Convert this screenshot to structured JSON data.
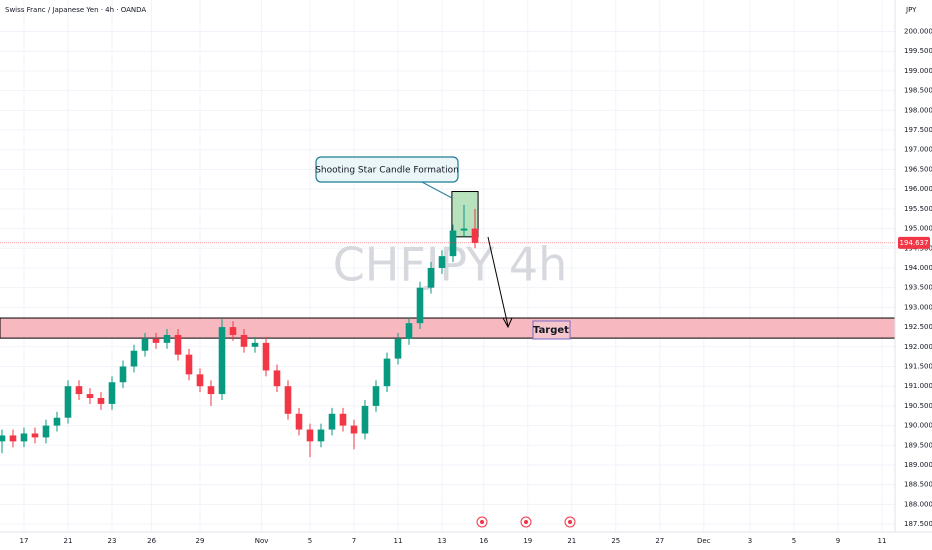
{
  "chart_data": {
    "type": "candlestick",
    "title": "Swiss Franc / Japanese Yen · 4h · OANDA",
    "currency": "JPY",
    "watermark": "CHFJPY 4h",
    "annotations": [
      "Shooting Star Candle Formation",
      "Target"
    ],
    "up_color": "#089981",
    "down_color": "#f23645",
    "grid": true,
    "xlim": [
      -1.09,
      39.59
    ],
    "ylim": [
      187.3,
      200.8
    ],
    "xticks": [
      {
        "value": 0,
        "label": "17"
      },
      {
        "value": 2,
        "label": "21"
      },
      {
        "value": 4,
        "label": "23"
      },
      {
        "value": 5.8,
        "label": "26"
      },
      {
        "value": 8,
        "label": "29"
      },
      {
        "value": 10.8,
        "label": "Nov"
      },
      {
        "value": 13,
        "label": "5"
      },
      {
        "value": 15,
        "label": "7"
      },
      {
        "value": 17,
        "label": "11"
      },
      {
        "value": 19,
        "label": "13"
      },
      {
        "value": 20.9,
        "label": "16"
      },
      {
        "value": 22.9,
        "label": "19"
      },
      {
        "value": 24.9,
        "label": "21"
      },
      {
        "value": 26.9,
        "label": "25"
      },
      {
        "value": 28.9,
        "label": "27"
      },
      {
        "value": 30.9,
        "label": "Dec"
      },
      {
        "value": 33,
        "label": "3"
      },
      {
        "value": 35,
        "label": "5"
      },
      {
        "value": 37,
        "label": "9"
      },
      {
        "value": 39,
        "label": "11"
      }
    ],
    "yticks": [
      {
        "value": 187.5,
        "label": "187.500"
      },
      {
        "value": 188,
        "label": "188.000"
      },
      {
        "value": 188.5,
        "label": "188.500"
      },
      {
        "value": 189,
        "label": "189.000"
      },
      {
        "value": 189.5,
        "label": "189.500"
      },
      {
        "value": 190,
        "label": "190.000"
      },
      {
        "value": 190.5,
        "label": "190.500"
      },
      {
        "value": 191,
        "label": "191.000"
      },
      {
        "value": 191.5,
        "label": "191.500"
      },
      {
        "value": 192,
        "label": "192.000"
      },
      {
        "value": 192.5,
        "label": "192.500"
      },
      {
        "value": 193,
        "label": "193.000"
      },
      {
        "value": 193.5,
        "label": "193.500"
      },
      {
        "value": 194,
        "label": "194.000"
      },
      {
        "value": 194.5,
        "label": "194.500"
      },
      {
        "value": 195,
        "label": "195.000"
      },
      {
        "value": 195.5,
        "label": "195.500"
      },
      {
        "value": 196,
        "label": "196.000"
      },
      {
        "value": 196.5,
        "label": "196.500"
      },
      {
        "value": 197,
        "label": "197.000"
      },
      {
        "value": 197.5,
        "label": "197.500"
      },
      {
        "value": 198,
        "label": "198.000"
      },
      {
        "value": 198.5,
        "label": "198.500"
      },
      {
        "value": 199,
        "label": "199.000"
      },
      {
        "value": 199.5,
        "label": "199.500"
      },
      {
        "value": 200,
        "label": "200.000"
      }
    ],
    "x": [
      -1,
      -0.5,
      0,
      0.5,
      1,
      1.5,
      2,
      2.5,
      3,
      3.5,
      4,
      4.5,
      5,
      5.5,
      6,
      6.5,
      7,
      7.5,
      8,
      8.5,
      9,
      9.5,
      10,
      10.5,
      11,
      11.5,
      12,
      12.5,
      13,
      13.5,
      14,
      14.5,
      15,
      15.5,
      16,
      16.5,
      17,
      17.5,
      18,
      18.5,
      19,
      19.5,
      20,
      20.5
    ],
    "open": [
      189.6,
      189.75,
      189.6,
      189.8,
      189.7,
      190.0,
      190.2,
      191.0,
      190.8,
      190.7,
      190.55,
      191.1,
      191.5,
      191.9,
      192.2,
      192.1,
      192.3,
      191.8,
      191.3,
      191.0,
      190.8,
      192.5,
      192.3,
      192.0,
      192.1,
      191.4,
      191.0,
      190.3,
      189.9,
      189.6,
      189.9,
      190.3,
      190.0,
      189.8,
      190.5,
      191.0,
      191.7,
      192.2,
      192.6,
      193.5,
      194.0,
      194.3,
      194.95,
      195.0
    ],
    "high": [
      189.9,
      189.9,
      189.95,
      189.95,
      190.15,
      190.35,
      191.15,
      191.15,
      190.95,
      190.85,
      191.25,
      191.65,
      192.05,
      192.35,
      192.35,
      192.45,
      192.45,
      191.95,
      191.45,
      191.15,
      192.7,
      192.65,
      192.45,
      192.25,
      192.25,
      191.55,
      191.15,
      190.45,
      190.05,
      190.05,
      190.45,
      190.45,
      190.15,
      190.65,
      191.15,
      191.85,
      192.35,
      192.75,
      193.65,
      194.15,
      194.45,
      195.1,
      195.6,
      195.5
    ],
    "low": [
      189.3,
      189.45,
      189.45,
      189.55,
      189.55,
      189.85,
      190.05,
      190.65,
      190.55,
      190.4,
      190.4,
      190.95,
      191.35,
      191.75,
      191.95,
      191.95,
      191.65,
      191.15,
      190.85,
      190.5,
      190.65,
      192.15,
      191.85,
      191.85,
      191.25,
      190.85,
      190.15,
      189.75,
      189.2,
      189.45,
      189.75,
      189.85,
      189.4,
      189.65,
      190.35,
      190.85,
      191.55,
      192.05,
      192.45,
      193.35,
      193.85,
      194.15,
      194.8,
      194.5
    ],
    "close": [
      189.75,
      189.6,
      189.8,
      189.7,
      190.0,
      190.2,
      191.0,
      190.8,
      190.7,
      190.55,
      191.1,
      191.5,
      191.9,
      192.2,
      192.1,
      192.3,
      191.8,
      191.3,
      191.0,
      190.8,
      192.5,
      192.3,
      192.0,
      192.1,
      191.4,
      191.0,
      190.3,
      189.9,
      189.6,
      189.9,
      190.3,
      190.0,
      189.8,
      190.5,
      191.0,
      191.7,
      192.2,
      192.6,
      193.5,
      194.0,
      194.3,
      194.95,
      195.0,
      194.637
    ],
    "last_price": 194.637,
    "zone": {
      "low": 192.22,
      "high": 192.73,
      "color": "#f7b9bf"
    },
    "pattern_box": {
      "x0": 19.45,
      "x1": 20.64,
      "low": 194.79,
      "high": 195.94,
      "color": "#b7e2bd"
    }
  }
}
